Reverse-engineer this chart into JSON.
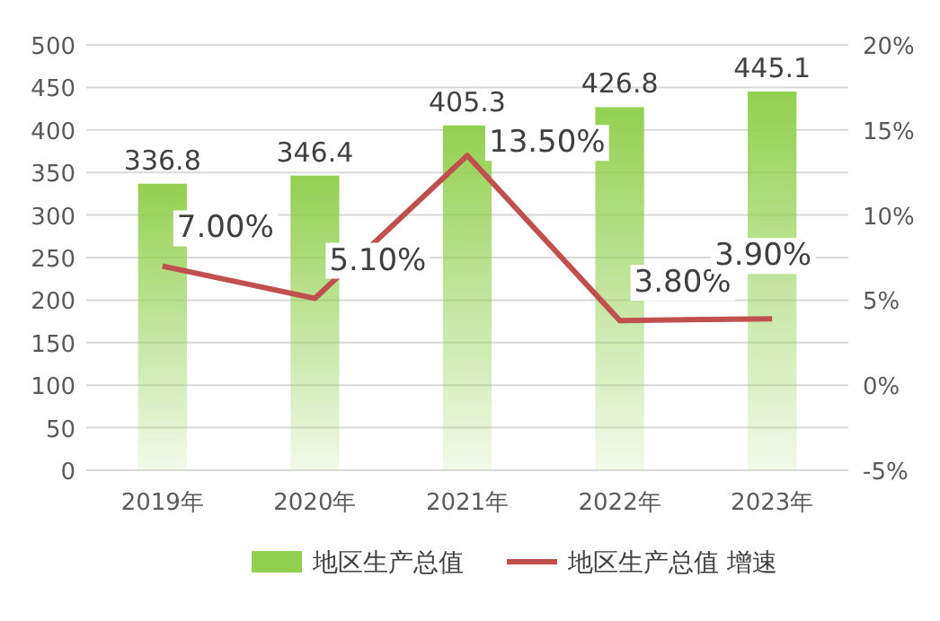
{
  "chart_data": {
    "type": "bar",
    "categories": [
      "2019年",
      "2020年",
      "2021年",
      "2022年",
      "2023年"
    ],
    "series": [
      {
        "name": "地区生产总值",
        "color": "#92d050",
        "values": [
          336.8,
          346.4,
          405.3,
          426.8,
          445.1
        ]
      },
      {
        "name": "地区生产总值 增速",
        "type": "line",
        "axis": "y2",
        "color": "#c0504d",
        "values": [
          7.0,
          5.1,
          13.5,
          3.8,
          3.9
        ],
        "value_labels": [
          "7.00%",
          "5.10%",
          "13.50%",
          "3.80%",
          "3.90%"
        ]
      }
    ],
    "data_labels": true,
    "ylim": [
      0,
      500
    ],
    "yticks": [
      0,
      50,
      100,
      150,
      200,
      250,
      300,
      350,
      400,
      450,
      500
    ],
    "y2lim": [
      -5,
      20
    ],
    "y2ticks": [
      {
        "value": -5,
        "label": "-5%"
      },
      {
        "value": 0,
        "label": "0%"
      },
      {
        "value": 5,
        "label": "5%"
      },
      {
        "value": 10,
        "label": "10%"
      },
      {
        "value": 15,
        "label": "15%"
      },
      {
        "value": 20,
        "label": "20%"
      }
    ],
    "grid": "y",
    "legend": "bottom",
    "marker": "none",
    "line_style": "solid"
  }
}
